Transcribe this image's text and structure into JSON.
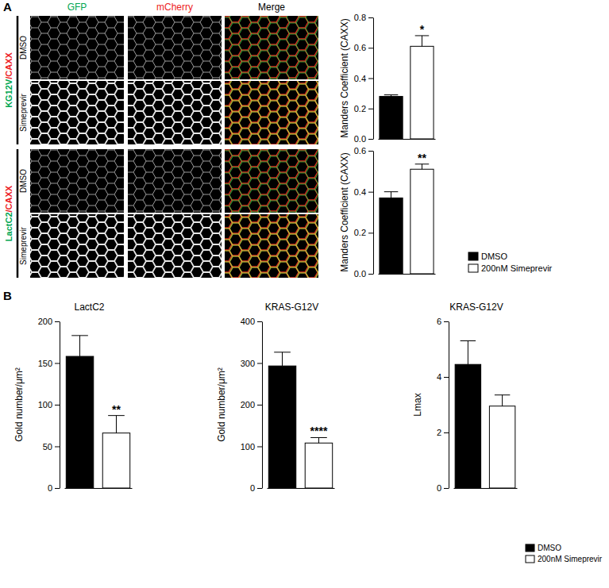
{
  "figure": {
    "panel_labels": [
      "A",
      "B"
    ],
    "image_columns": [
      {
        "text": "GFP",
        "color": "#00a651"
      },
      {
        "text": "mCherry",
        "color": "#ed1c24"
      },
      {
        "text": "Merge",
        "color": "#000000"
      }
    ],
    "row_groups": [
      {
        "label_parts": [
          {
            "text": "KG12V",
            "color": "#00a651"
          },
          {
            "text": "/CAXX",
            "color": "#ed1c24"
          }
        ],
        "conditions": [
          "DMSO",
          "Simeprevir"
        ]
      },
      {
        "label_parts": [
          {
            "text": "LactC2",
            "color": "#00a651"
          },
          {
            "text": "/CAXX",
            "color": "#ed1c24"
          }
        ],
        "conditions": [
          "DMSO",
          "Simeprevir"
        ]
      }
    ]
  },
  "chart_data": [
    {
      "type": "bar",
      "y_label": "Manders Coefficient (CAXX)",
      "ylim": [
        0,
        0.8
      ],
      "yticks": [
        {
          "value": 0,
          "label": "0.0"
        },
        0.2,
        0.4,
        0.6,
        0.8
      ],
      "annotation": "*",
      "series": [
        {
          "name": "DMSO",
          "color": "#000000",
          "values": [
            0.28
          ],
          "errors": [
            0.01
          ]
        },
        {
          "name": "200nM Simeprevir",
          "color": "#ffffff",
          "values": [
            0.61
          ],
          "errors": [
            0.07
          ]
        }
      ]
    },
    {
      "type": "bar",
      "y_label": "Manders Coefficient (CAXX)",
      "ylim": [
        0,
        0.6
      ],
      "yticks": [
        {
          "value": 0,
          "label": "0.0"
        },
        0.2,
        0.4,
        0.6
      ],
      "annotation": "**",
      "legend": "lower right",
      "series": [
        {
          "name": "DMSO",
          "color": "#000000",
          "values": [
            0.37
          ],
          "errors": [
            0.03
          ]
        },
        {
          "name": "200nM Simeprevir",
          "color": "#ffffff",
          "values": [
            0.51
          ],
          "errors": [
            0.025
          ]
        }
      ]
    },
    {
      "type": "bar",
      "title": "LactC2",
      "y_label": "Gold number/μm²",
      "ylim": [
        0,
        200
      ],
      "yticks": [
        0,
        50,
        100,
        150,
        200
      ],
      "annotation": "**",
      "series": [
        {
          "name": "DMSO",
          "color": "#000000",
          "values": [
            158
          ],
          "errors": [
            25
          ]
        },
        {
          "name": "200nM Simeprevir",
          "color": "#ffffff",
          "values": [
            66
          ],
          "errors": [
            21
          ]
        }
      ]
    },
    {
      "type": "bar",
      "title": "KRAS-G12V",
      "y_label": "Gold number/μm²",
      "ylim": [
        0,
        400
      ],
      "yticks": [
        0,
        100,
        200,
        300,
        400
      ],
      "annotation": "****",
      "series": [
        {
          "name": "DMSO",
          "color": "#000000",
          "values": [
            293
          ],
          "errors": [
            33
          ]
        },
        {
          "name": "200nM Simeprevir",
          "color": "#ffffff",
          "values": [
            108
          ],
          "errors": [
            13
          ]
        }
      ]
    },
    {
      "type": "bar",
      "title": "KRAS-G12V",
      "y_label": "Lmax",
      "ylim": [
        0,
        6
      ],
      "yticks": [
        0,
        2,
        4,
        6
      ],
      "legend": "lower right",
      "series": [
        {
          "name": "DMSO",
          "color": "#000000",
          "values": [
            4.45
          ],
          "errors": [
            0.85
          ]
        },
        {
          "name": "200nM Simeprevir",
          "color": "#ffffff",
          "values": [
            2.95
          ],
          "errors": [
            0.4
          ]
        }
      ]
    }
  ]
}
